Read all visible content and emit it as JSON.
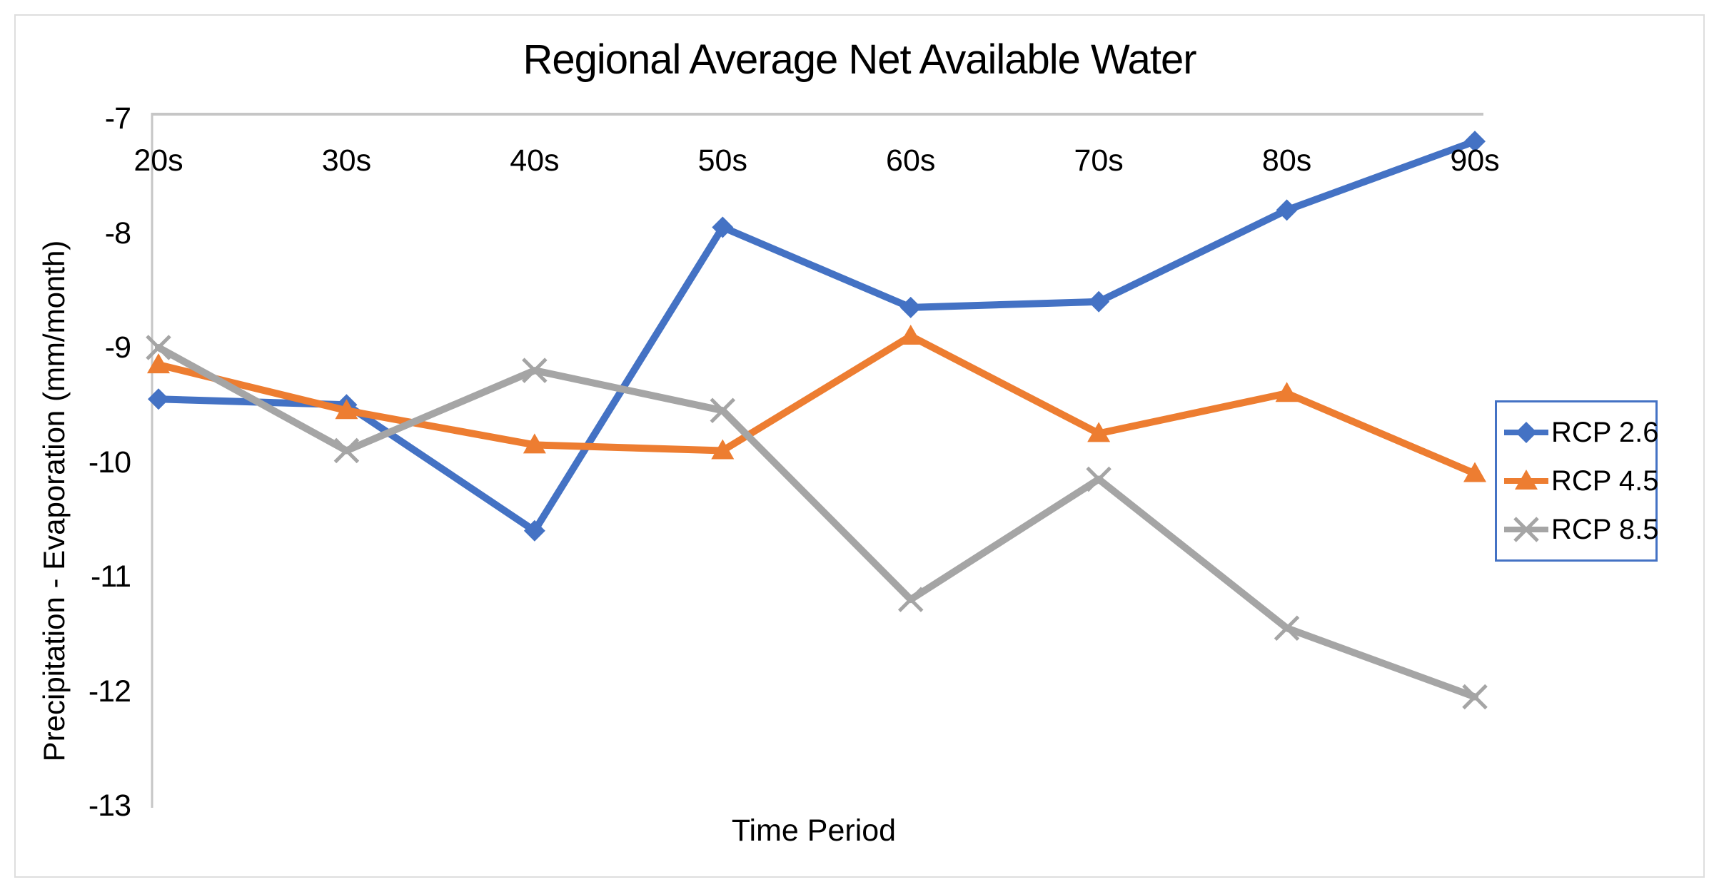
{
  "chart_data": {
    "type": "line",
    "title": "Regional Average Net Available Water",
    "xlabel": "Time Period",
    "ylabel": "Precipitation - Evaporation (mm/month)",
    "categories": [
      "20s",
      "30s",
      "40s",
      "50s",
      "60s",
      "70s",
      "80s",
      "90s"
    ],
    "ylim": [
      -13,
      -7
    ],
    "yticks": [
      -7,
      -8,
      -9,
      -10,
      -11,
      -12,
      -13
    ],
    "ytick_labels": [
      "-7",
      "-8",
      "-9",
      "-10",
      "-11",
      "-12",
      "-13"
    ],
    "grid": false,
    "legend_position": "right",
    "series": [
      {
        "name": "RCP 2.6",
        "color": "#4472c4",
        "marker": "diamond",
        "values": [
          -9.45,
          -9.5,
          -10.6,
          -7.95,
          -8.65,
          -8.6,
          -7.8,
          -7.2
        ]
      },
      {
        "name": "RCP 4.5",
        "color": "#ed7d31",
        "marker": "triangle",
        "values": [
          -9.15,
          -9.55,
          -9.85,
          -9.9,
          -8.9,
          -9.75,
          -9.4,
          -10.1
        ]
      },
      {
        "name": "RCP 8.5",
        "color": "#a5a5a5",
        "marker": "x",
        "values": [
          -9.0,
          -9.9,
          -9.2,
          -9.55,
          -11.2,
          -10.15,
          -11.45,
          -12.05
        ]
      }
    ]
  },
  "colors": {
    "axis_line": "#c6c6c6",
    "frame": "#dedede",
    "legend_border": "#4472c4",
    "text": "#000000"
  }
}
